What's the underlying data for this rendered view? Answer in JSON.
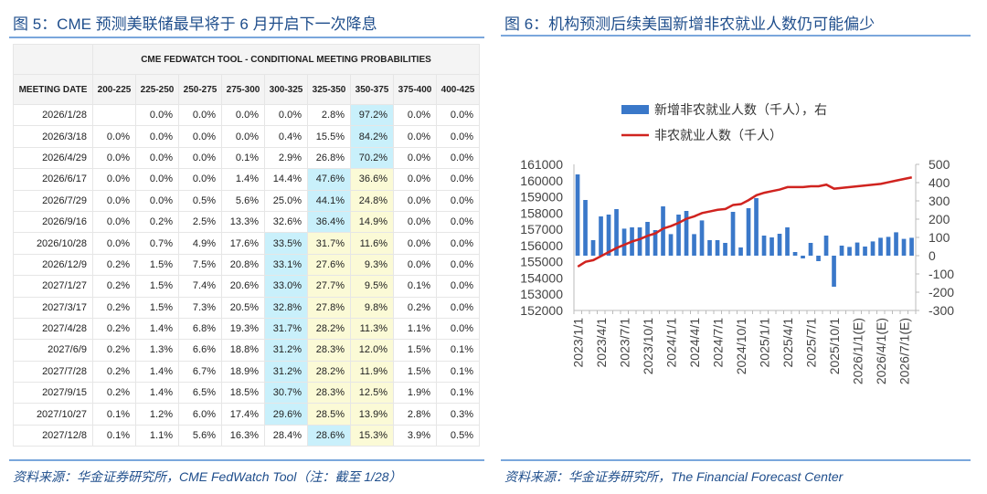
{
  "left": {
    "title": "图 5：CME 预测美联储最早将于 6 月开启下一次降息",
    "table_title": "CME FEDWATCH TOOL - CONDITIONAL MEETING PROBABILITIES",
    "headers": [
      "MEETING DATE",
      "200-225",
      "225-250",
      "250-275",
      "275-300",
      "300-325",
      "325-350",
      "350-375",
      "375-400",
      "400-425"
    ],
    "rows": [
      [
        "2026/1/28",
        "",
        "0.0%",
        "0.0%",
        "0.0%",
        "0.0%",
        "2.8%",
        "97.2%",
        "0.0%",
        "0.0%"
      ],
      [
        "2026/3/18",
        "0.0%",
        "0.0%",
        "0.0%",
        "0.0%",
        "0.4%",
        "15.5%",
        "84.2%",
        "0.0%",
        "0.0%"
      ],
      [
        "2026/4/29",
        "0.0%",
        "0.0%",
        "0.0%",
        "0.1%",
        "2.9%",
        "26.8%",
        "70.2%",
        "0.0%",
        "0.0%"
      ],
      [
        "2026/6/17",
        "0.0%",
        "0.0%",
        "0.0%",
        "1.4%",
        "14.4%",
        "47.6%",
        "36.6%",
        "0.0%",
        "0.0%"
      ],
      [
        "2026/7/29",
        "0.0%",
        "0.0%",
        "0.5%",
        "5.6%",
        "25.0%",
        "44.1%",
        "24.8%",
        "0.0%",
        "0.0%"
      ],
      [
        "2026/9/16",
        "0.0%",
        "0.2%",
        "2.5%",
        "13.3%",
        "32.6%",
        "36.4%",
        "14.9%",
        "0.0%",
        "0.0%"
      ],
      [
        "2026/10/28",
        "0.0%",
        "0.7%",
        "4.9%",
        "17.6%",
        "33.5%",
        "31.7%",
        "11.6%",
        "0.0%",
        "0.0%"
      ],
      [
        "2026/12/9",
        "0.2%",
        "1.5%",
        "7.5%",
        "20.8%",
        "33.1%",
        "27.6%",
        "9.3%",
        "0.0%",
        "0.0%"
      ],
      [
        "2027/1/27",
        "0.2%",
        "1.5%",
        "7.4%",
        "20.6%",
        "33.0%",
        "27.7%",
        "9.5%",
        "0.1%",
        "0.0%"
      ],
      [
        "2027/3/17",
        "0.2%",
        "1.5%",
        "7.3%",
        "20.5%",
        "32.8%",
        "27.8%",
        "9.8%",
        "0.2%",
        "0.0%"
      ],
      [
        "2027/4/28",
        "0.2%",
        "1.4%",
        "6.8%",
        "19.3%",
        "31.7%",
        "28.2%",
        "11.3%",
        "1.1%",
        "0.0%"
      ],
      [
        "2027/6/9",
        "0.2%",
        "1.3%",
        "6.6%",
        "18.8%",
        "31.2%",
        "28.3%",
        "12.0%",
        "1.5%",
        "0.1%"
      ],
      [
        "2027/7/28",
        "0.2%",
        "1.4%",
        "6.7%",
        "18.9%",
        "31.2%",
        "28.2%",
        "11.9%",
        "1.5%",
        "0.1%"
      ],
      [
        "2027/9/15",
        "0.2%",
        "1.4%",
        "6.5%",
        "18.5%",
        "30.7%",
        "28.3%",
        "12.5%",
        "1.9%",
        "0.1%"
      ],
      [
        "2027/10/27",
        "0.1%",
        "1.2%",
        "6.0%",
        "17.4%",
        "29.6%",
        "28.5%",
        "13.9%",
        "2.8%",
        "0.3%"
      ],
      [
        "2027/12/8",
        "0.1%",
        "1.1%",
        "5.6%",
        "16.3%",
        "28.4%",
        "28.6%",
        "15.3%",
        "3.9%",
        "0.5%"
      ]
    ],
    "highlight_cyan": [
      [
        0,
        7
      ],
      [
        1,
        7
      ],
      [
        2,
        7
      ],
      [
        3,
        6
      ],
      [
        4,
        6
      ],
      [
        5,
        6
      ],
      [
        6,
        5
      ],
      [
        7,
        5
      ],
      [
        8,
        5
      ],
      [
        9,
        5
      ],
      [
        10,
        5
      ],
      [
        11,
        5
      ],
      [
        12,
        5
      ],
      [
        13,
        5
      ],
      [
        14,
        5
      ],
      [
        15,
        6
      ]
    ],
    "highlight_yellow": [
      [
        3,
        7
      ],
      [
        4,
        7
      ],
      [
        5,
        7
      ],
      [
        6,
        6
      ],
      [
        6,
        7
      ],
      [
        7,
        6
      ],
      [
        7,
        7
      ],
      [
        8,
        6
      ],
      [
        8,
        7
      ],
      [
        9,
        6
      ],
      [
        9,
        7
      ],
      [
        10,
        6
      ],
      [
        10,
        7
      ],
      [
        11,
        6
      ],
      [
        11,
        7
      ],
      [
        12,
        6
      ],
      [
        12,
        7
      ],
      [
        13,
        6
      ],
      [
        13,
        7
      ],
      [
        14,
        6
      ],
      [
        14,
        7
      ],
      [
        15,
        7
      ]
    ],
    "source": "资料来源：华金证券研究所，CME FedWatch Tool（注：截至 1/28）"
  },
  "right": {
    "title": "图 6：机构预测后续美国新增非农就业人数仍可能偏少",
    "source": "资料来源：华金证券研究所，The Financial Forecast Center",
    "chart_data": {
      "type": "bar+line",
      "legend_position": "top",
      "series": [
        {
          "name": "新增非农就业人数（千人），右",
          "type": "bar",
          "axis": "right",
          "color": "#3a78c9",
          "values": [
            445,
            305,
            85,
            215,
            225,
            255,
            148,
            155,
            155,
            185,
            140,
            270,
            118,
            225,
            245,
            118,
            193,
            85,
            85,
            70,
            240,
            45,
            260,
            315,
            110,
            100,
            120,
            155,
            20,
            -15,
            70,
            -30,
            110,
            -170,
            55,
            48,
            72,
            50,
            78,
            98,
            103,
            128,
            92,
            98
          ]
        },
        {
          "name": "非农就业人数（千人）",
          "type": "line",
          "axis": "left",
          "color": "#d0231f",
          "values": [
            154700,
            155000,
            155100,
            155350,
            155600,
            155850,
            156050,
            156250,
            156400,
            156600,
            156750,
            157050,
            157200,
            157400,
            157650,
            157800,
            158000,
            158100,
            158200,
            158250,
            158500,
            158550,
            158800,
            159100,
            159250,
            159350,
            159450,
            159600,
            159600,
            159600,
            159650,
            159650,
            159750,
            159500,
            159550,
            159600,
            159650,
            159700,
            159750,
            159800,
            159900,
            160000,
            160100,
            160200
          ]
        }
      ],
      "x_tick_labels": [
        "2023/1/1",
        "2023/4/1",
        "2023/7/1",
        "2023/10/1",
        "2024/1/1",
        "2024/4/1",
        "2024/7/1",
        "2024/10/1",
        "2025/1/1",
        "2025/4/1",
        "2025/7/1",
        "2025/10/1",
        "2026/1/1(E)",
        "2026/4/1(E)",
        "2026/7/1(E)"
      ],
      "left_axis": {
        "ylim": [
          152000,
          161000
        ],
        "ticks": [
          "161000",
          "160000",
          "159000",
          "158000",
          "157000",
          "156000",
          "155000",
          "154000",
          "153000",
          "152000"
        ]
      },
      "right_axis": {
        "ylim": [
          -300,
          500
        ],
        "ticks": [
          "500",
          "400",
          "300",
          "200",
          "100",
          "0",
          "-100",
          "-200",
          "-300"
        ]
      }
    }
  }
}
